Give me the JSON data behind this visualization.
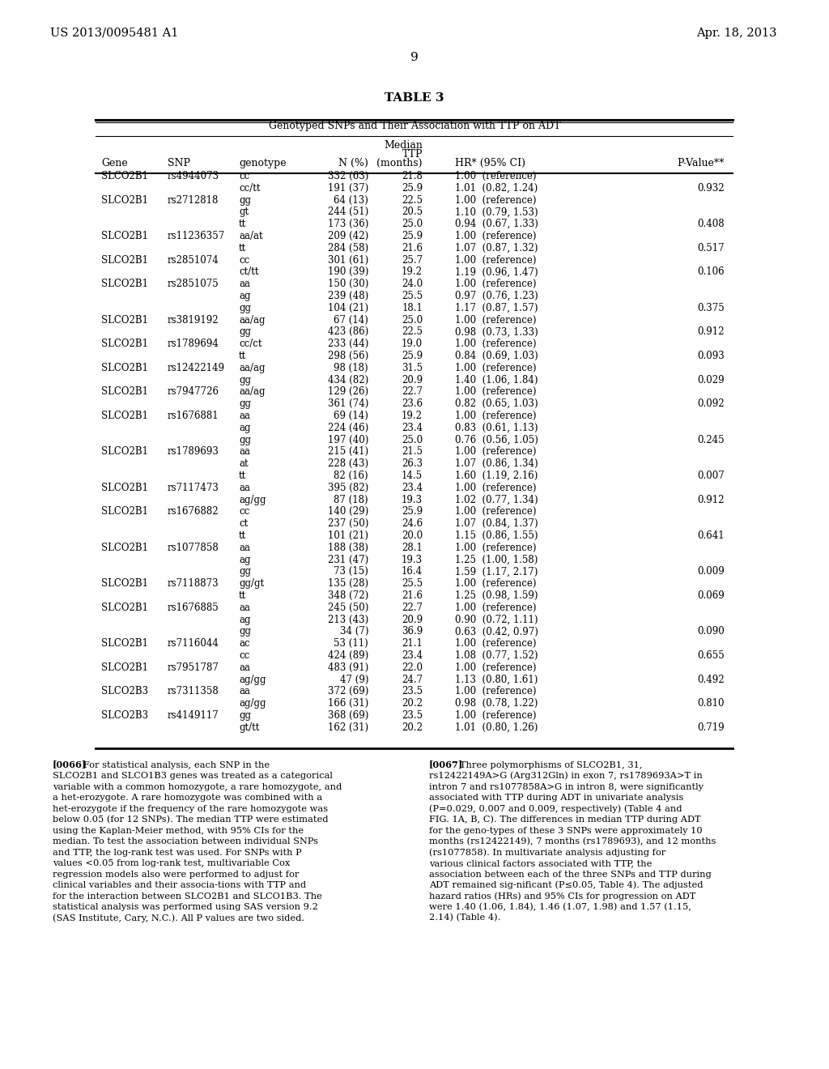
{
  "header_left": "US 2013/0095481 A1",
  "header_right": "Apr. 18, 2013",
  "page_number": "9",
  "table_title": "TABLE 3",
  "table_subtitle": "Genotyped SNPs and Their Association with TTP on ADT",
  "col_headers_line1": [
    "",
    "",
    "",
    "",
    "Median",
    "",
    ""
  ],
  "col_headers_line2": [
    "",
    "",
    "",
    "",
    "TTP",
    "",
    ""
  ],
  "col_headers_line3": [
    "Gene",
    "SNP",
    "genotype",
    "N (%)",
    "(months)",
    "HR* (95% CI)",
    "P-Value**"
  ],
  "rows": [
    [
      "SLCO2B1",
      "rs4944073",
      "cc",
      "332 (63)",
      "21.8",
      "1.00  (reference)",
      ""
    ],
    [
      "",
      "",
      "cc/tt",
      "191 (37)",
      "25.9",
      "1.01  (0.82, 1.24)",
      "0.932"
    ],
    [
      "SLCO2B1",
      "rs2712818",
      "gg",
      "64 (13)",
      "22.5",
      "1.00  (reference)",
      ""
    ],
    [
      "",
      "",
      "gt",
      "244 (51)",
      "20.5",
      "1.10  (0.79, 1.53)",
      ""
    ],
    [
      "",
      "",
      "tt",
      "173 (36)",
      "25.0",
      "0.94  (0.67, 1.33)",
      "0.408"
    ],
    [
      "SLCO2B1",
      "rs11236357",
      "aa/at",
      "209 (42)",
      "25.9",
      "1.00  (reference)",
      ""
    ],
    [
      "",
      "",
      "tt",
      "284 (58)",
      "21.6",
      "1.07  (0.87, 1.32)",
      "0.517"
    ],
    [
      "SLCO2B1",
      "rs2851074",
      "cc",
      "301 (61)",
      "25.7",
      "1.00  (reference)",
      ""
    ],
    [
      "",
      "",
      "ct/tt",
      "190 (39)",
      "19.2",
      "1.19  (0.96, 1.47)",
      "0.106"
    ],
    [
      "SLCO2B1",
      "rs2851075",
      "aa",
      "150 (30)",
      "24.0",
      "1.00  (reference)",
      ""
    ],
    [
      "",
      "",
      "ag",
      "239 (48)",
      "25.5",
      "0.97  (0.76, 1.23)",
      ""
    ],
    [
      "",
      "",
      "gg",
      "104 (21)",
      "18.1",
      "1.17  (0.87, 1.57)",
      "0.375"
    ],
    [
      "SLCO2B1",
      "rs3819192",
      "aa/ag",
      "67 (14)",
      "25.0",
      "1.00  (reference)",
      ""
    ],
    [
      "",
      "",
      "gg",
      "423 (86)",
      "22.5",
      "0.98  (0.73, 1.33)",
      "0.912"
    ],
    [
      "SLCO2B1",
      "rs1789694",
      "cc/ct",
      "233 (44)",
      "19.0",
      "1.00  (reference)",
      ""
    ],
    [
      "",
      "",
      "tt",
      "298 (56)",
      "25.9",
      "0.84  (0.69, 1.03)",
      "0.093"
    ],
    [
      "SLCO2B1",
      "rs12422149",
      "aa/ag",
      "98 (18)",
      "31.5",
      "1.00  (reference)",
      ""
    ],
    [
      "",
      "",
      "gg",
      "434 (82)",
      "20.9",
      "1.40  (1.06, 1.84)",
      "0.029"
    ],
    [
      "SLCO2B1",
      "rs7947726",
      "aa/ag",
      "129 (26)",
      "22.7",
      "1.00  (reference)",
      ""
    ],
    [
      "",
      "",
      "gg",
      "361 (74)",
      "23.6",
      "0.82  (0.65, 1.03)",
      "0.092"
    ],
    [
      "SLCO2B1",
      "rs1676881",
      "aa",
      "69 (14)",
      "19.2",
      "1.00  (reference)",
      ""
    ],
    [
      "",
      "",
      "ag",
      "224 (46)",
      "23.4",
      "0.83  (0.61, 1.13)",
      ""
    ],
    [
      "",
      "",
      "gg",
      "197 (40)",
      "25.0",
      "0.76  (0.56, 1.05)",
      "0.245"
    ],
    [
      "SLCO2B1",
      "rs1789693",
      "aa",
      "215 (41)",
      "21.5",
      "1.00  (reference)",
      ""
    ],
    [
      "",
      "",
      "at",
      "228 (43)",
      "26.3",
      "1.07  (0.86, 1.34)",
      ""
    ],
    [
      "",
      "",
      "tt",
      "82 (16)",
      "14.5",
      "1.60  (1.19, 2.16)",
      "0.007"
    ],
    [
      "SLCO2B1",
      "rs7117473",
      "aa",
      "395 (82)",
      "23.4",
      "1.00  (reference)",
      ""
    ],
    [
      "",
      "",
      "ag/gg",
      "87 (18)",
      "19.3",
      "1.02  (0.77, 1.34)",
      "0.912"
    ],
    [
      "SLCO2B1",
      "rs1676882",
      "cc",
      "140 (29)",
      "25.9",
      "1.00  (reference)",
      ""
    ],
    [
      "",
      "",
      "ct",
      "237 (50)",
      "24.6",
      "1.07  (0.84, 1.37)",
      ""
    ],
    [
      "",
      "",
      "tt",
      "101 (21)",
      "20.0",
      "1.15  (0.86, 1.55)",
      "0.641"
    ],
    [
      "SLCO2B1",
      "rs1077858",
      "aa",
      "188 (38)",
      "28.1",
      "1.00  (reference)",
      ""
    ],
    [
      "",
      "",
      "ag",
      "231 (47)",
      "19.3",
      "1.25  (1.00, 1.58)",
      ""
    ],
    [
      "",
      "",
      "gg",
      "73 (15)",
      "16.4",
      "1.59  (1.17, 2.17)",
      "0.009"
    ],
    [
      "SLCO2B1",
      "rs7118873",
      "gg/gt",
      "135 (28)",
      "25.5",
      "1.00  (reference)",
      ""
    ],
    [
      "",
      "",
      "tt",
      "348 (72)",
      "21.6",
      "1.25  (0.98, 1.59)",
      "0.069"
    ],
    [
      "SLCO2B1",
      "rs1676885",
      "aa",
      "245 (50)",
      "22.7",
      "1.00  (reference)",
      ""
    ],
    [
      "",
      "",
      "ag",
      "213 (43)",
      "20.9",
      "0.90  (0.72, 1.11)",
      ""
    ],
    [
      "",
      "",
      "gg",
      "34 (7)",
      "36.9",
      "0.63  (0.42, 0.97)",
      "0.090"
    ],
    [
      "SLCO2B1",
      "rs7116044",
      "ac",
      "53 (11)",
      "21.1",
      "1.00  (reference)",
      ""
    ],
    [
      "",
      "",
      "cc",
      "424 (89)",
      "23.4",
      "1.08  (0.77, 1.52)",
      "0.655"
    ],
    [
      "SLCO2B1",
      "rs7951787",
      "aa",
      "483 (91)",
      "22.0",
      "1.00  (reference)",
      ""
    ],
    [
      "",
      "",
      "ag/gg",
      "47 (9)",
      "24.7",
      "1.13  (0.80, 1.61)",
      "0.492"
    ],
    [
      "SLCO2B3",
      "rs7311358",
      "aa",
      "372 (69)",
      "23.5",
      "1.00  (reference)",
      ""
    ],
    [
      "",
      "",
      "ag/gg",
      "166 (31)",
      "20.2",
      "0.98  (0.78, 1.22)",
      "0.810"
    ],
    [
      "SLCO2B3",
      "rs4149117",
      "gg",
      "368 (69)",
      "23.5",
      "1.00  (reference)",
      ""
    ],
    [
      "",
      "",
      "gt/tt",
      "162 (31)",
      "20.2",
      "1.01  (0.80, 1.26)",
      "0.719"
    ]
  ],
  "footnote_left_tag": "[0066]",
  "footnote_left_text": "   For statistical analysis, each SNP in the SLCO2B1 and SLCO1B3 genes was treated as a categorical variable with a common homozygote, a rare homozygote, and a het-erozygote. A rare homozygote was combined with a het-erozygote if the frequency of the rare homozygote was below 0.05 (for 12 SNPs). The median TTP were estimated using the Kaplan-Meier method, with 95% CIs for the median. To test the association between individual SNPs and TTP, the log-rank test was used. For SNPs with P values <0.05 from log-rank test, multivariable Cox regression models also were performed to adjust for clinical variables and their associa-tions with TTP and for the interaction between SLCO2B1 and SLCO1B3. The statistical analysis was performed using SAS version 9.2 (SAS Institute, Cary, N.C.). All P values are two sided.",
  "footnote_right_tag": "[0067]",
  "footnote_right_text": "   Three polymorphisms of SLCO2B1, 31, rs12422149A>G (Arg312Gln) in exon 7, rs1789693A>T in intron 7 and rs1077858A>G in intron 8, were significantly associated with TTP during ADT in univariate analysis (P=0.029, 0.007 and 0.009, respectively) (Table 4 and FIG. 1A, B, C). The differences in median TTP during ADT for the geno-types of these 3 SNPs were approximately 10 months (rs12422149), 7 months (rs1789693), and 12 months (rs1077858). In multivariate analysis adjusting for various clinical factors associated with TTP, the association between each of the three SNPs and TTP during ADT remained sig-nificant (P≤0.05, Table 4). The adjusted hazard ratios (HRs) and 95% CIs for progression on ADT were 1.40 (1.06, 1.84), 1.46 (1.07, 1.98) and 1.57 (1.15, 2.14) (Table 4).",
  "bg_color": "#ffffff",
  "text_color": "#000000"
}
